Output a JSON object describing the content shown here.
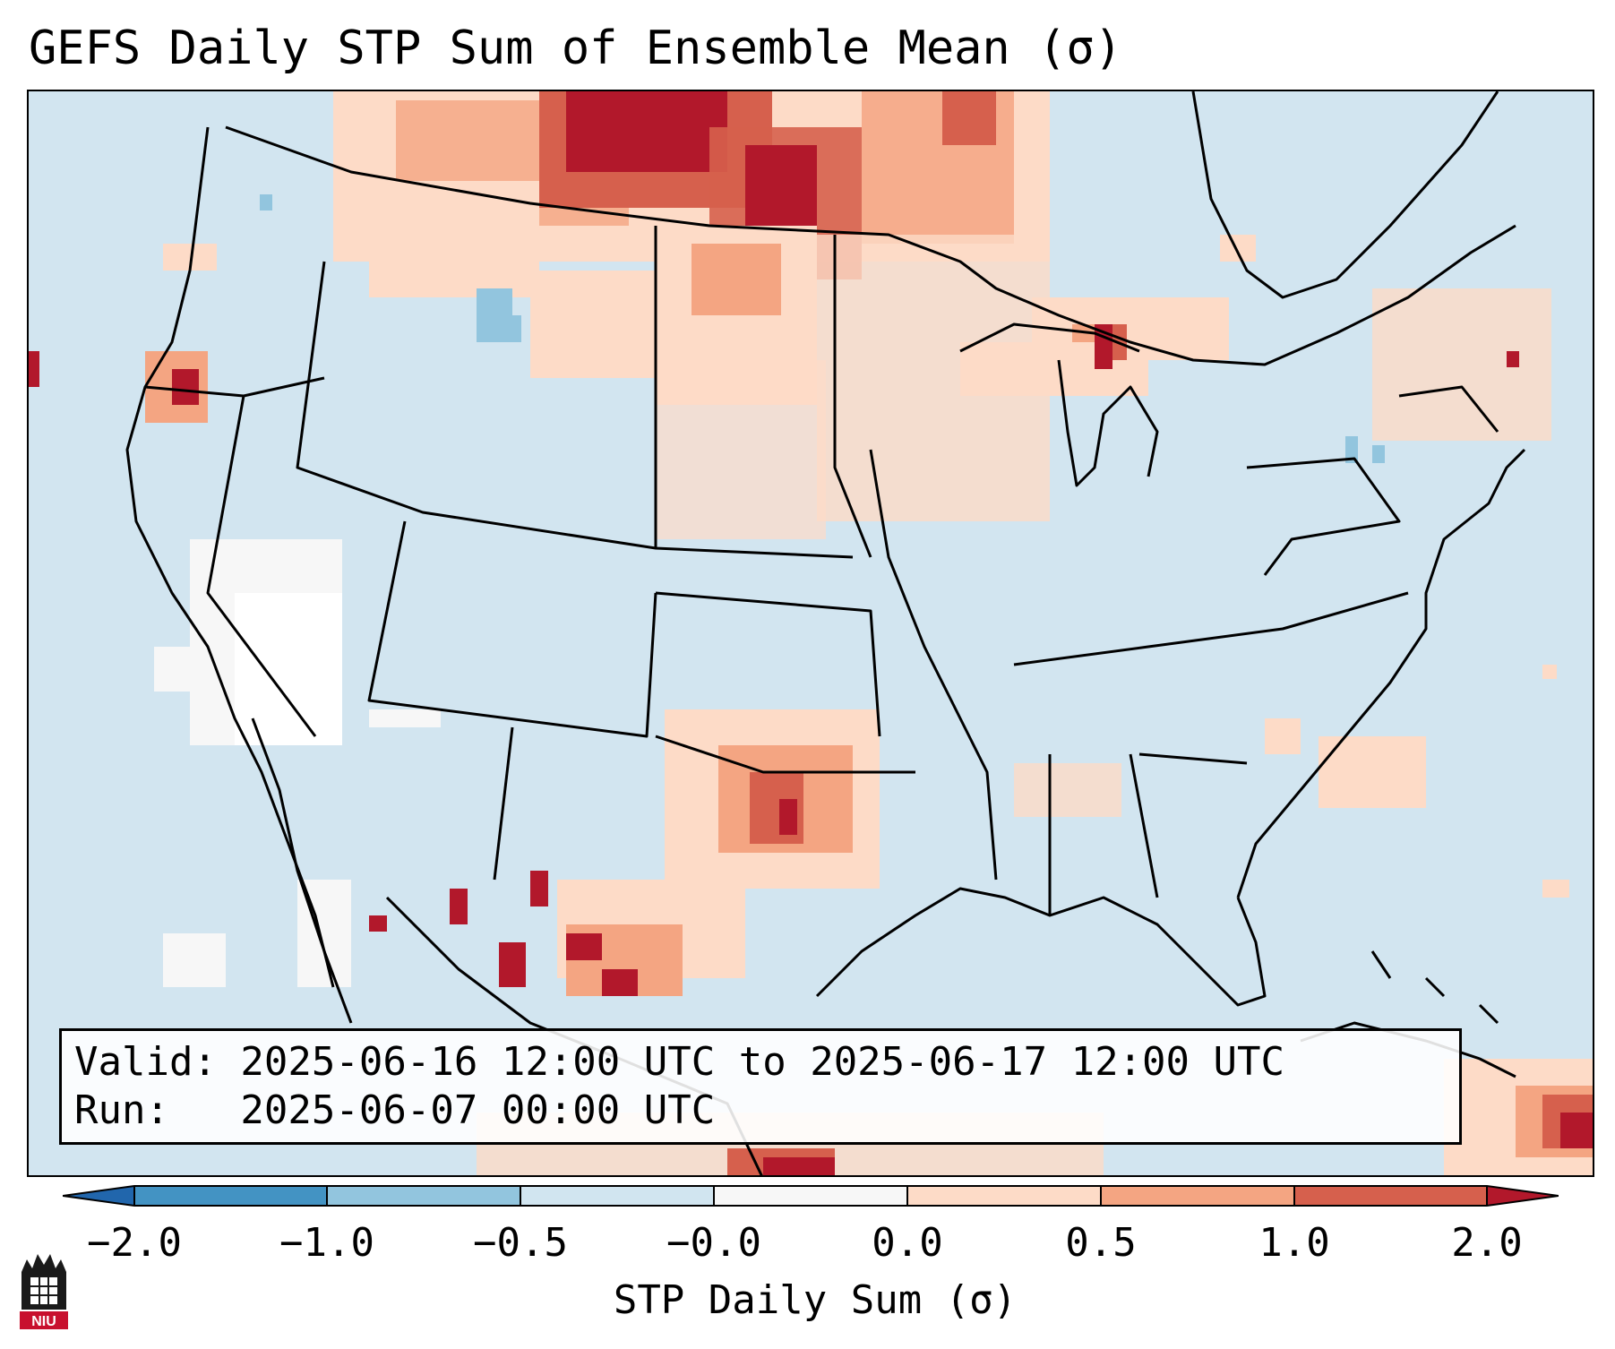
{
  "title": "GEFS Daily STP Sum of Ensemble Mean (σ)",
  "info": {
    "valid": "Valid: 2025-06-16 12:00 UTC to 2025-06-17 12:00 UTC",
    "run": "Run:   2025-06-07 00:00 UTC"
  },
  "colorbar": {
    "title": "STP Daily Sum (σ)",
    "tick_labels": [
      "−2.0",
      "−1.0",
      "−0.5",
      "−0.0",
      "0.0",
      "0.5",
      "1.0",
      "2.0"
    ],
    "bins": [
      {
        "range": "< -2.0",
        "color": "#2166ac"
      },
      {
        "range": "-2.0 to -1.0",
        "color": "#4393c3"
      },
      {
        "range": "-1.0 to -0.5",
        "color": "#92c5de"
      },
      {
        "range": "-0.5 to -0.0",
        "color": "#d1e5f0"
      },
      {
        "range": "-0.0 to 0.0",
        "color": "#f7f7f7"
      },
      {
        "range": "0.0 to 0.5",
        "color": "#fddbc7"
      },
      {
        "range": "0.5 to 1.0",
        "color": "#f4a582"
      },
      {
        "range": "1.0 to 2.0",
        "color": "#d6604d"
      },
      {
        "range": "> 2.0",
        "color": "#b2182b"
      }
    ]
  },
  "logo": {
    "text": "NIU",
    "name": "Northern Illinois University"
  },
  "colors": {
    "background": "#d2e5f0",
    "border": "#000000"
  }
}
